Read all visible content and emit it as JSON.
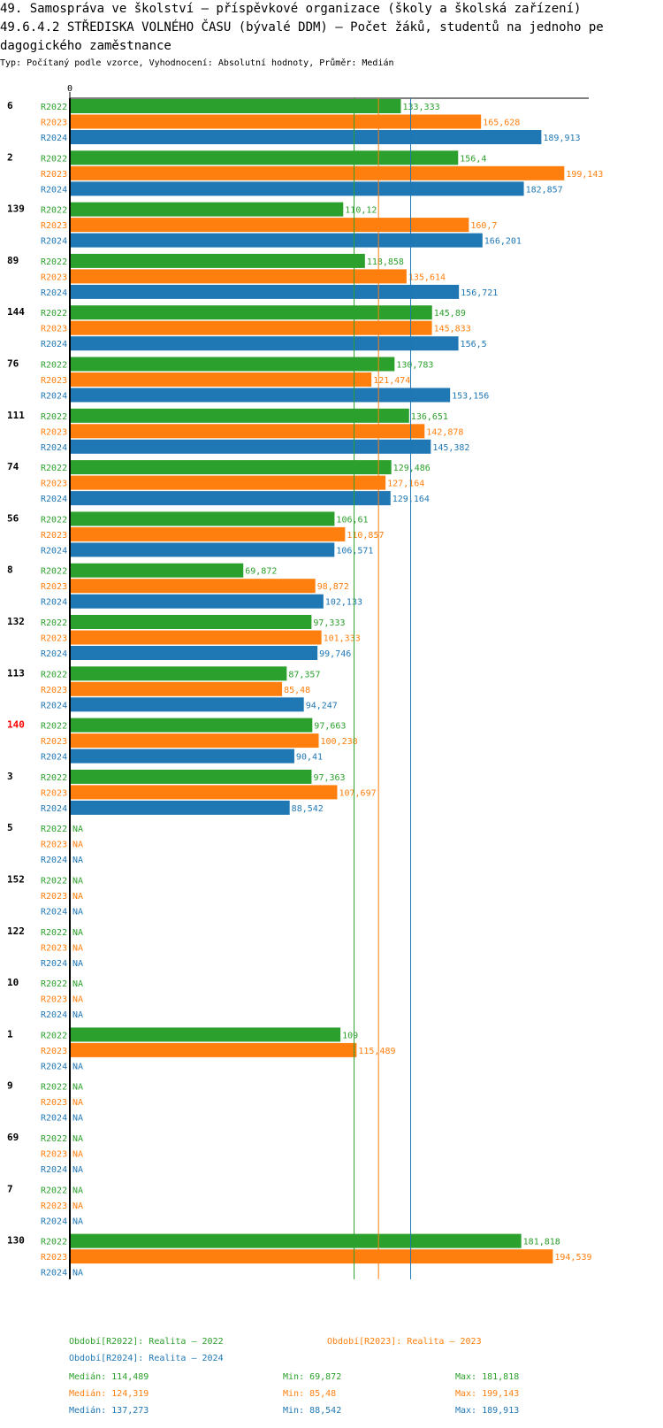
{
  "title": {
    "line1": "49. Samospráva ve školství – příspěvkové organizace (školy a školská zařízení)",
    "line2": "49.6.4.2 STŘEDISKA VOLNÉHO ČASU (bývalé DDM) – Počet žáků, studentů na jednoho pe",
    "line3": "dagogického zaměstnance"
  },
  "subtitle": "Typ: Počítaný podle vzorce, Vyhodnocení: Absolutní hodnoty, Průměr: Medián",
  "colors": {
    "R2022": "#2ca02c",
    "R2023": "#ff7f0e",
    "R2024": "#1f77b4",
    "highlight": "#ff0000",
    "axis": "#000000"
  },
  "chart_data": {
    "type": "bar",
    "orientation": "horizontal",
    "xlim": [
      0,
      209
    ],
    "axis_zero_label": "0",
    "na_label": "NA",
    "series_names": [
      "R2022",
      "R2023",
      "R2024"
    ],
    "highlight_group": "140",
    "groups": [
      {
        "id": "6",
        "values": [
          133.333,
          165.628,
          189.913
        ],
        "labels": [
          "133,333",
          "165,628",
          "189,913"
        ]
      },
      {
        "id": "2",
        "values": [
          156.4,
          199.143,
          182.857
        ],
        "labels": [
          "156,4",
          "199,143",
          "182,857"
        ]
      },
      {
        "id": "139",
        "values": [
          110.12,
          160.7,
          166.201
        ],
        "labels": [
          "110,12",
          "160,7",
          "166,201"
        ]
      },
      {
        "id": "89",
        "values": [
          118.858,
          135.614,
          156.721
        ],
        "labels": [
          "118,858",
          "135,614",
          "156,721"
        ]
      },
      {
        "id": "144",
        "values": [
          145.89,
          145.833,
          156.5
        ],
        "labels": [
          "145,89",
          "145,833",
          "156,5"
        ]
      },
      {
        "id": "76",
        "values": [
          130.783,
          121.474,
          153.156
        ],
        "labels": [
          "130,783",
          "121,474",
          "153,156"
        ]
      },
      {
        "id": "111",
        "values": [
          136.651,
          142.878,
          145.382
        ],
        "labels": [
          "136,651",
          "142,878",
          "145,382"
        ]
      },
      {
        "id": "74",
        "values": [
          129.486,
          127.164,
          129.164
        ],
        "labels": [
          "129,486",
          "127,164",
          "129,164"
        ]
      },
      {
        "id": "56",
        "values": [
          106.61,
          110.857,
          106.571
        ],
        "labels": [
          "106,61",
          "110,857",
          "106,571"
        ]
      },
      {
        "id": "8",
        "values": [
          69.872,
          98.872,
          102.133
        ],
        "labels": [
          "69,872",
          "98,872",
          "102,133"
        ]
      },
      {
        "id": "132",
        "values": [
          97.333,
          101.333,
          99.746
        ],
        "labels": [
          "97,333",
          "101,333",
          "99,746"
        ]
      },
      {
        "id": "113",
        "values": [
          87.357,
          85.48,
          94.247
        ],
        "labels": [
          "87,357",
          "85,48",
          "94,247"
        ]
      },
      {
        "id": "140",
        "values": [
          97.663,
          100.238,
          90.41
        ],
        "labels": [
          "97,663",
          "100,238",
          "90,41"
        ]
      },
      {
        "id": "3",
        "values": [
          97.363,
          107.697,
          88.542
        ],
        "labels": [
          "97,363",
          "107,697",
          "88,542"
        ]
      },
      {
        "id": "5",
        "values": [
          null,
          null,
          null
        ],
        "labels": [
          "NA",
          "NA",
          "NA"
        ]
      },
      {
        "id": "152",
        "values": [
          null,
          null,
          null
        ],
        "labels": [
          "NA",
          "NA",
          "NA"
        ]
      },
      {
        "id": "122",
        "values": [
          null,
          null,
          null
        ],
        "labels": [
          "NA",
          "NA",
          "NA"
        ]
      },
      {
        "id": "10",
        "values": [
          null,
          null,
          null
        ],
        "labels": [
          "NA",
          "NA",
          "NA"
        ]
      },
      {
        "id": "1",
        "values": [
          109,
          115.489,
          null
        ],
        "labels": [
          "109",
          "115,489",
          "NA"
        ]
      },
      {
        "id": "9",
        "values": [
          null,
          null,
          null
        ],
        "labels": [
          "NA",
          "NA",
          "NA"
        ]
      },
      {
        "id": "69",
        "values": [
          null,
          null,
          null
        ],
        "labels": [
          "NA",
          "NA",
          "NA"
        ]
      },
      {
        "id": "7",
        "values": [
          null,
          null,
          null
        ],
        "labels": [
          "NA",
          "NA",
          "NA"
        ]
      },
      {
        "id": "130",
        "values": [
          181.818,
          194.539,
          null
        ],
        "labels": [
          "181,818",
          "194,539",
          "NA"
        ]
      }
    ],
    "medians": [
      114.489,
      124.319,
      137.273
    ]
  },
  "legend": {
    "period_2022": "Období[R2022]: Realita – 2022",
    "period_2023": "Období[R2023]: Realita – 2023",
    "period_2024": "Období[R2024]: Realita – 2024",
    "stats": [
      {
        "median": "Medián: 114,489",
        "min": "Min: 69,872",
        "max": "Max: 181,818"
      },
      {
        "median": "Medián: 124,319",
        "min": "Min: 85,48",
        "max": "Max: 199,143"
      },
      {
        "median": "Medián: 137,273",
        "min": "Min: 88,542",
        "max": "Max: 189,913"
      }
    ]
  }
}
